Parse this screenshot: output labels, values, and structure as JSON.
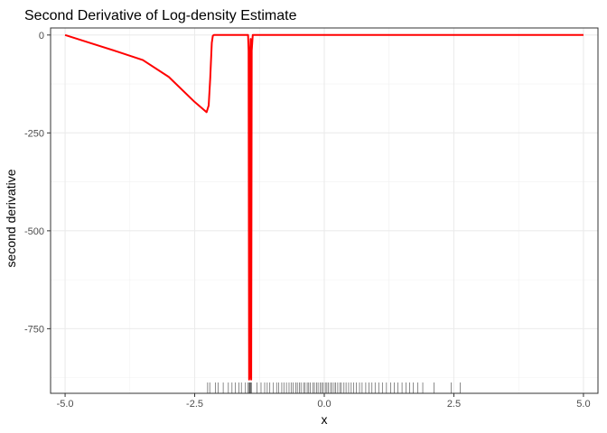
{
  "chart_data": {
    "type": "line",
    "title": "Second Derivative of Log-density Estimate",
    "xlabel": "x",
    "ylabel": "second derivative",
    "xlim": [
      -5.28,
      5.28
    ],
    "ylim": [
      -915,
      18
    ],
    "x_ticks": [
      -5.0,
      -2.5,
      0.0,
      2.5,
      5.0
    ],
    "x_tick_labels": [
      "-5.0",
      "-2.5",
      "0.0",
      "2.5",
      "5.0"
    ],
    "y_ticks": [
      0,
      -250,
      -500,
      -750
    ],
    "y_tick_labels": [
      "0",
      "-250",
      "-500",
      "-750"
    ],
    "grid": true,
    "series": [
      {
        "color": "#ff0000",
        "x": [
          -5.0,
          -4.5,
          -4.0,
          -3.5,
          -3.0,
          -2.5,
          -2.27,
          -2.23,
          -2.2,
          -2.17,
          -2.15,
          -2.13,
          -1.8,
          -1.47,
          -1.46,
          -1.45,
          -1.44,
          -1.43,
          -1.42,
          -1.41,
          -1.4,
          -1.38,
          0.0,
          2.5,
          5.0
        ],
        "y": [
          0,
          -21,
          -42,
          -64,
          -107,
          -171,
          -197,
          -180,
          -110,
          -20,
          -2,
          0,
          0,
          0,
          -40,
          -880,
          -870,
          -40,
          -10,
          -880,
          -40,
          0,
          0,
          0,
          0
        ]
      }
    ],
    "rug_color": "#000000",
    "rug": [
      -2.25,
      -2.21,
      -2.1,
      -2.05,
      -1.95,
      -1.85,
      -1.78,
      -1.72,
      -1.65,
      -1.6,
      -1.52,
      -1.47,
      -1.45,
      -1.44,
      -1.43,
      -1.42,
      -1.4,
      -1.3,
      -1.22,
      -1.15,
      -1.1,
      -1.05,
      -0.98,
      -0.92,
      -0.88,
      -0.82,
      -0.78,
      -0.73,
      -0.68,
      -0.64,
      -0.6,
      -0.55,
      -0.52,
      -0.48,
      -0.45,
      -0.4,
      -0.37,
      -0.33,
      -0.3,
      -0.27,
      -0.22,
      -0.19,
      -0.15,
      -0.12,
      -0.08,
      -0.05,
      -0.02,
      0.02,
      0.05,
      0.08,
      0.12,
      0.15,
      0.19,
      0.22,
      0.26,
      0.3,
      0.33,
      0.38,
      0.42,
      0.47,
      0.52,
      0.57,
      0.62,
      0.68,
      0.73,
      0.8,
      0.86,
      0.92,
      0.98,
      1.05,
      1.12,
      1.2,
      1.28,
      1.35,
      1.42,
      1.5,
      1.58,
      1.65,
      1.72,
      1.8,
      1.9,
      2.12,
      2.45,
      2.62
    ]
  }
}
